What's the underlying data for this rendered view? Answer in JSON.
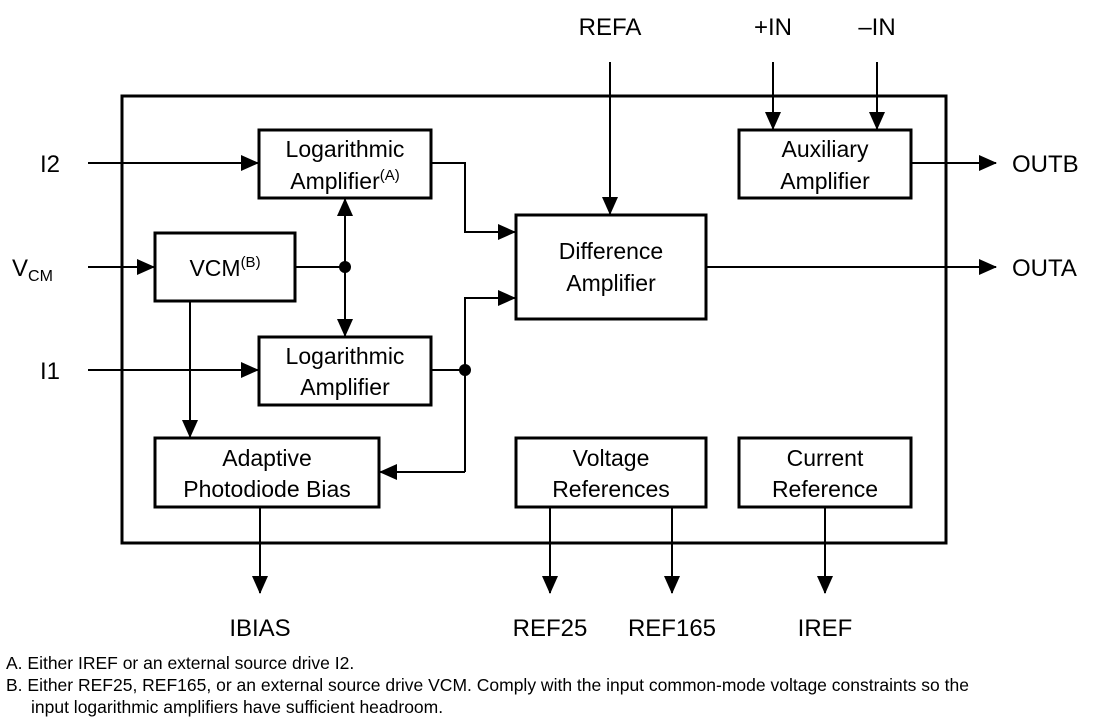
{
  "pins": {
    "i2": "I2",
    "vcm_main": "V",
    "vcm_sub": "CM",
    "i1": "I1",
    "refa": "REFA",
    "plus_in": "+IN",
    "minus_in": "–IN",
    "outb": "OUTB",
    "outa": "OUTA",
    "ibias": "IBIAS",
    "ref25": "REF25",
    "ref165": "REF165",
    "iref": "IREF"
  },
  "blocks": {
    "log_amp_top": {
      "line1": "Logarithmic",
      "line2": "Amplifier",
      "note": "(A)"
    },
    "vcm": {
      "line1": "VCM",
      "note": "(B)"
    },
    "log_amp_bottom": {
      "line1": "Logarithmic",
      "line2": "Amplifier"
    },
    "adaptive_bias": {
      "line1": "Adaptive",
      "line2": "Photodiode Bias"
    },
    "difference_amp": {
      "line1": "Difference",
      "line2": "Amplifier"
    },
    "auxiliary_amp": {
      "line1": "Auxiliary",
      "line2": "Amplifier"
    },
    "voltage_refs": {
      "line1": "Voltage",
      "line2": "References"
    },
    "current_ref": {
      "line1": "Current",
      "line2": "Reference"
    }
  },
  "notes": {
    "a": "A. Either IREF or an external source drive I2.",
    "b1": "B. Either REF25, REF165, or an external source drive VCM. Comply with the input common-mode voltage constraints so the",
    "b2": "input logarithmic amplifiers have sufficient headroom."
  }
}
